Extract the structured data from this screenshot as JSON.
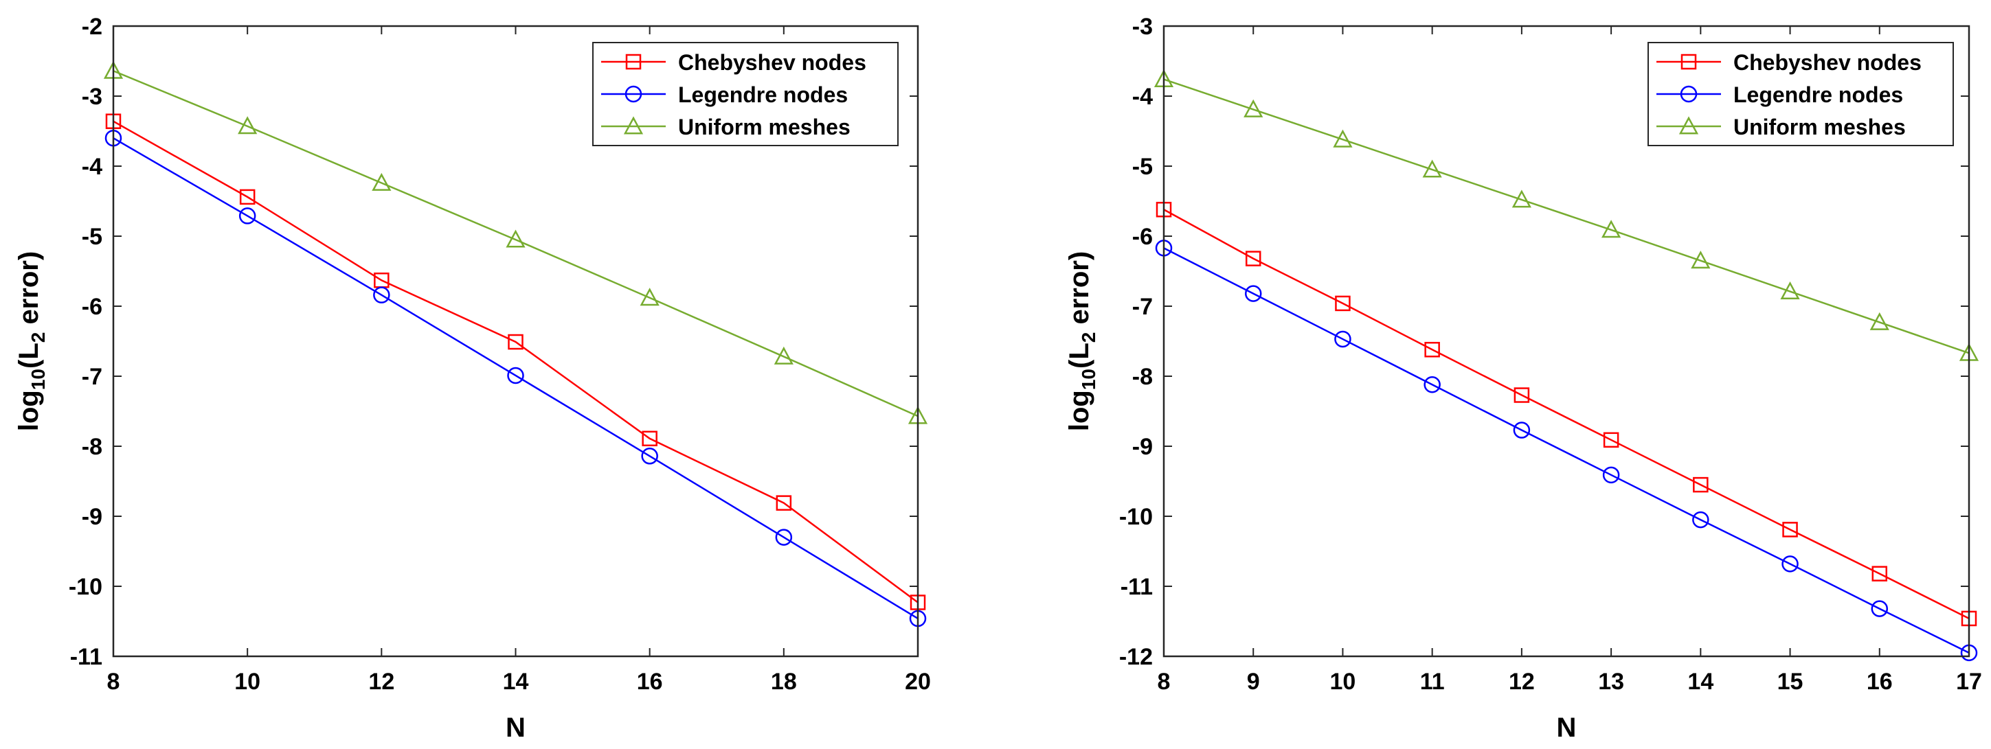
{
  "chart_data": [
    {
      "type": "line",
      "xlabel": "N",
      "ylabel": {
        "prefix": "log",
        "sub1": "10",
        "mid": "(L",
        "sub2": "2",
        "suffix": " error)"
      },
      "xlim": [
        8,
        20
      ],
      "ylim": [
        -11,
        -2
      ],
      "xticks": [
        8,
        10,
        12,
        14,
        16,
        18,
        20
      ],
      "yticks": [
        -2,
        -3,
        -4,
        -5,
        -6,
        -7,
        -8,
        -9,
        -10,
        -11
      ],
      "legend_position": "top-right",
      "x": [
        8,
        10,
        12,
        14,
        16,
        18,
        20
      ],
      "series": [
        {
          "name": "Chebyshev nodes",
          "color": "#ff0000",
          "marker": "square",
          "values": [
            -3.36,
            -4.44,
            -5.63,
            -6.51,
            -7.89,
            -8.81,
            -10.23
          ]
        },
        {
          "name": "Legendre nodes",
          "color": "#0000ff",
          "marker": "circle",
          "values": [
            -3.6,
            -4.71,
            -5.84,
            -6.99,
            -8.14,
            -9.3,
            -10.46
          ]
        },
        {
          "name": "Uniform meshes",
          "color": "#77ac30",
          "marker": "triangle",
          "values": [
            -2.64,
            -3.43,
            -4.24,
            -5.05,
            -5.88,
            -6.72,
            -7.57
          ]
        }
      ]
    },
    {
      "type": "line",
      "xlabel": "N",
      "ylabel": {
        "prefix": "log",
        "sub1": "10",
        "mid": "(L",
        "sub2": "2",
        "suffix": " error)"
      },
      "xlim": [
        8,
        17
      ],
      "ylim": [
        -12,
        -3
      ],
      "xticks": [
        8,
        9,
        10,
        11,
        12,
        13,
        14,
        15,
        16,
        17
      ],
      "yticks": [
        -3,
        -4,
        -5,
        -6,
        -7,
        -8,
        -9,
        -10,
        -11,
        -12
      ],
      "legend_position": "top-right",
      "x": [
        8,
        9,
        10,
        11,
        12,
        13,
        14,
        15,
        16,
        17
      ],
      "series": [
        {
          "name": "Chebyshev nodes",
          "color": "#ff0000",
          "marker": "square",
          "values": [
            -5.62,
            -6.32,
            -6.96,
            -7.62,
            -8.27,
            -8.91,
            -9.55,
            -10.19,
            -10.82,
            -11.46
          ]
        },
        {
          "name": "Legendre nodes",
          "color": "#0000ff",
          "marker": "circle",
          "values": [
            -6.17,
            -6.82,
            -7.47,
            -8.12,
            -8.77,
            -9.41,
            -10.05,
            -10.68,
            -11.32,
            -11.95
          ]
        },
        {
          "name": "Uniform meshes",
          "color": "#77ac30",
          "marker": "triangle",
          "values": [
            -3.76,
            -4.19,
            -4.62,
            -5.05,
            -5.48,
            -5.91,
            -6.35,
            -6.79,
            -7.23,
            -7.67
          ]
        }
      ]
    }
  ]
}
